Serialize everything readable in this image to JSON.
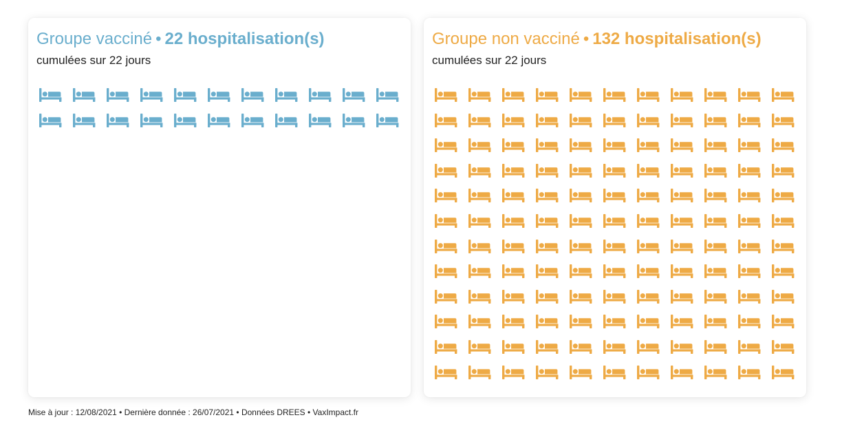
{
  "chart_data": [
    {
      "type": "pictogram",
      "icon": "bed-icon",
      "group_label": "Groupe vacciné",
      "separator": "•",
      "count_label": "22 hospitalisation(s)",
      "subtitle": "cumulées sur 22 jours",
      "value": 22,
      "color": "#6aaecd"
    },
    {
      "type": "pictogram",
      "icon": "bed-icon",
      "group_label": "Groupe non vacciné",
      "separator": "•",
      "count_label": "132 hospitalisation(s)",
      "subtitle": "cumulées sur 22 jours",
      "value": 132,
      "color": "#eeaa45"
    }
  ],
  "footer": "Mise à jour : 12/08/2021 • Dernière donnée : 26/07/2021 • Données DREES • VaxImpact.fr"
}
